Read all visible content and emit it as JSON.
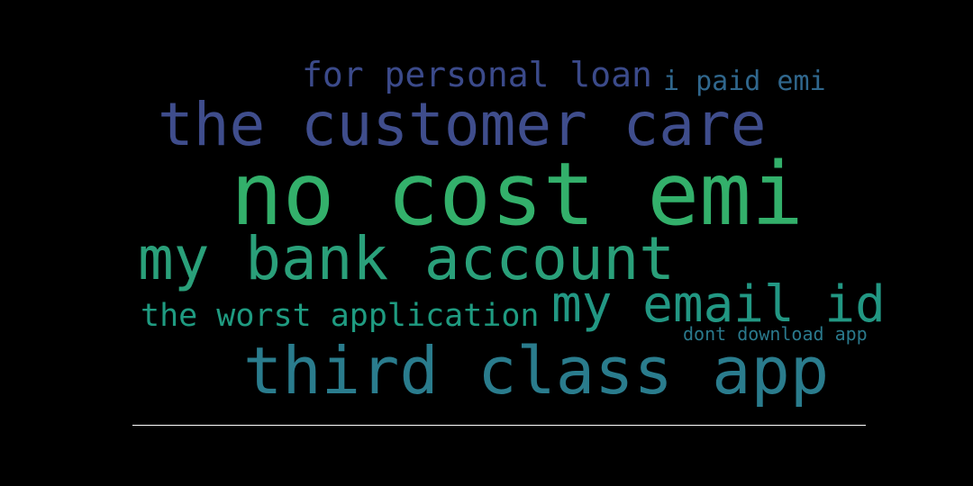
{
  "background": "#000000",
  "divider_color": "#ffffff",
  "words": [
    {
      "text": "for personal loan",
      "color": "#3b4a8a"
    },
    {
      "text": "i paid emi",
      "color": "#30678d"
    },
    {
      "text": "the customer care",
      "color": "#3f4d8c"
    },
    {
      "text": "no cost emi",
      "color": "#33b06b"
    },
    {
      "text": "my bank account",
      "color": "#2aa07a"
    },
    {
      "text": "my email id",
      "color": "#229783"
    },
    {
      "text": "the worst application",
      "color": "#1f9b81"
    },
    {
      "text": "dont download app",
      "color": "#2a798c"
    },
    {
      "text": "third class app",
      "color": "#2a7c8d"
    }
  ]
}
